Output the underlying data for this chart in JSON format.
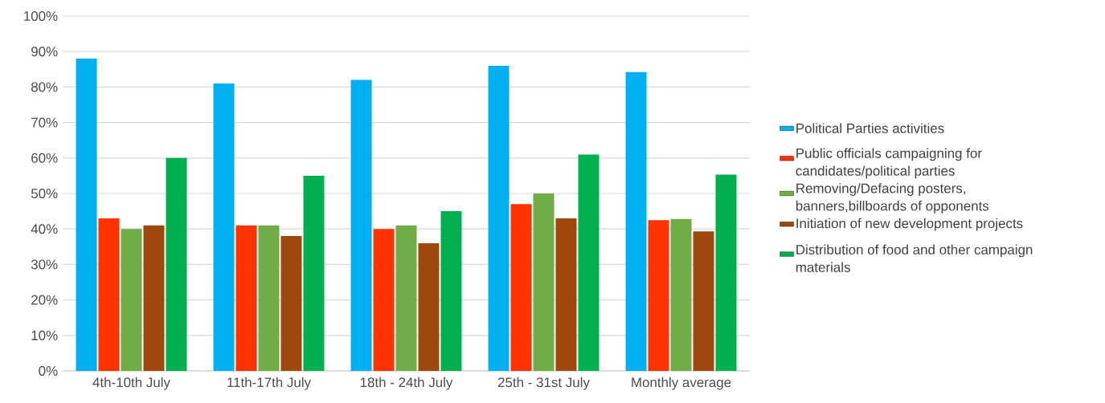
{
  "chart_data": {
    "type": "bar",
    "categories": [
      "4th-10th July",
      "11th-17th July",
      "18th - 24th July",
      "25th - 31st July",
      "Monthly average"
    ],
    "series": [
      {
        "name": "Political Parties activities",
        "color": "#00b0f0",
        "values": [
          88,
          81,
          82,
          86,
          84.2
        ]
      },
      {
        "name": "Public officials campaigning for candidates/political parties",
        "color": "#ff3300",
        "values": [
          43,
          41,
          40,
          47,
          42.5
        ]
      },
      {
        "name": "Removing/Defacing posters, banners,billboards of opponents",
        "color": "#70ad47",
        "values": [
          40,
          41,
          41,
          50,
          42.8
        ]
      },
      {
        "name": "Initiation of new development projects",
        "color": "#9e480e",
        "values": [
          41,
          38,
          36,
          43,
          39.3
        ]
      },
      {
        "name": "Distribution of food and other campaign materials",
        "color": "#00b050",
        "values": [
          60,
          55,
          45,
          61,
          55.3
        ]
      }
    ],
    "ylim": [
      0,
      100
    ],
    "yticks": [
      {
        "value": 0,
        "label": "0%"
      },
      {
        "value": 10,
        "label": "10%"
      },
      {
        "value": 20,
        "label": "20%"
      },
      {
        "value": 30,
        "label": "30%"
      },
      {
        "value": 40,
        "label": "40%"
      },
      {
        "value": 50,
        "label": "50%"
      },
      {
        "value": 60,
        "label": "60%"
      },
      {
        "value": 70,
        "label": "70%"
      },
      {
        "value": 80,
        "label": "80%"
      },
      {
        "value": 90,
        "label": "90%"
      },
      {
        "value": 100,
        "label": "100%"
      }
    ],
    "grid": "y",
    "legend": "right"
  }
}
